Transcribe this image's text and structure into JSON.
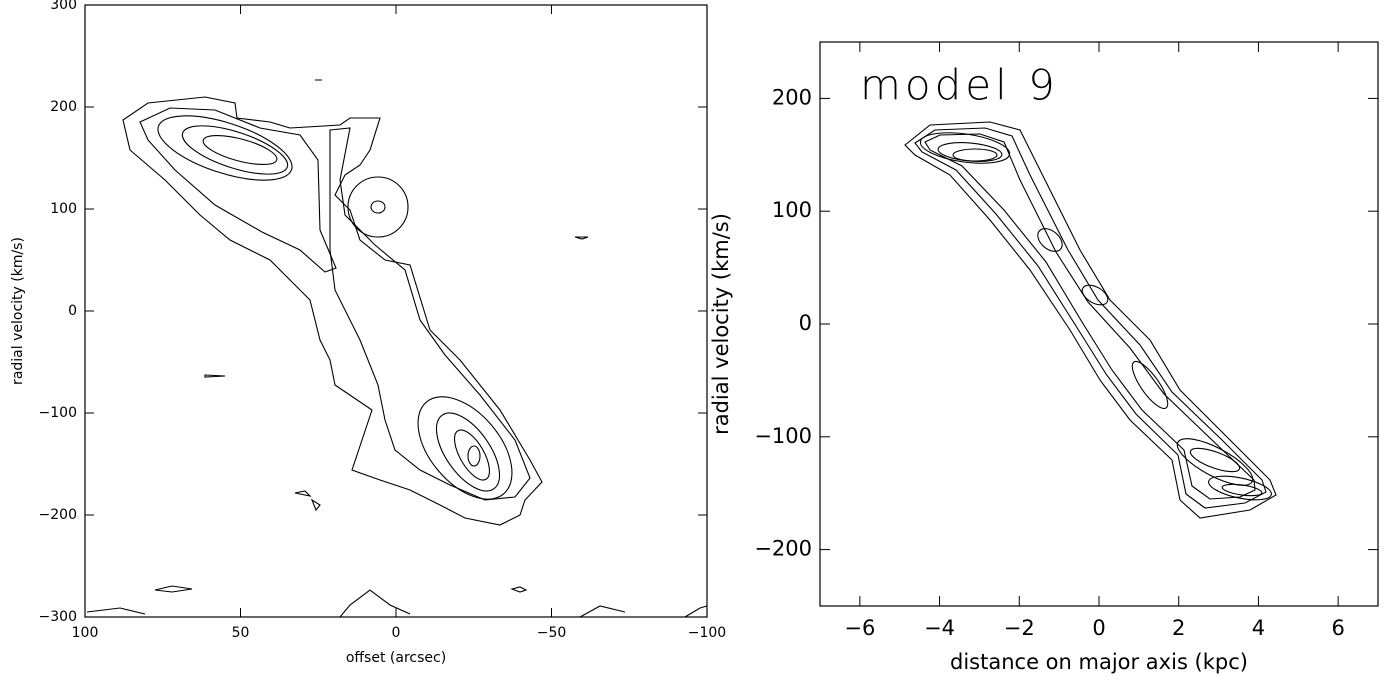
{
  "chart_data": [
    {
      "type": "contour",
      "xlabel": "offset (arcsec)",
      "ylabel": "radial velocity (km/s)",
      "xlim": [
        100,
        -100
      ],
      "ylim": [
        -300,
        300
      ],
      "xticks": [
        100,
        50,
        0,
        {
          "value": -50,
          "label": "−50"
        },
        {
          "value": -100,
          "label": "−100"
        }
      ],
      "yticks": [
        {
          "value": -300,
          "label": "−300"
        },
        {
          "value": -200,
          "label": "−200"
        },
        {
          "value": -100,
          "label": "−100"
        },
        0,
        100,
        200,
        300
      ]
    },
    {
      "type": "contour",
      "xlabel": "distance on major axis (kpc)",
      "ylabel": "radial velocity (km/s)",
      "annotation": "model 9",
      "xlim": [
        -7,
        7
      ],
      "ylim": [
        -250,
        250
      ],
      "xticks": [
        {
          "value": -6,
          "label": "−6"
        },
        {
          "value": -4,
          "label": "−4"
        },
        {
          "value": -2,
          "label": "−2"
        },
        0,
        2,
        4,
        6
      ],
      "yticks": [
        {
          "value": -200,
          "label": "−200"
        },
        {
          "value": -100,
          "label": "−100"
        },
        0,
        100,
        200
      ]
    }
  ]
}
